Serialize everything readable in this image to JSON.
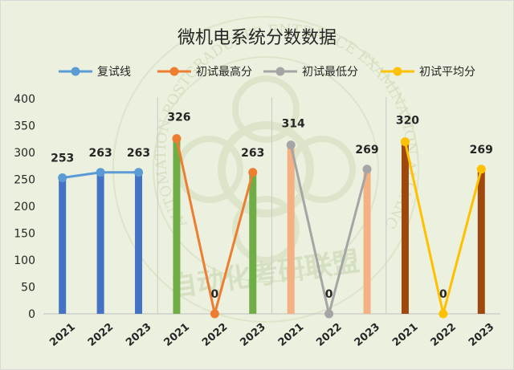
{
  "chart_data": {
    "type": "bar",
    "title": "微机电系统分数数据",
    "ylim": [
      0,
      400
    ],
    "yticks": [
      0,
      50,
      100,
      150,
      200,
      250,
      300,
      350,
      400
    ],
    "grid": false,
    "legend_position": "top",
    "groups": [
      {
        "categories": [
          "2021",
          "2022",
          "2023"
        ],
        "bar_values": [
          253,
          263,
          263
        ],
        "bar_color": "#4472c4",
        "line_series": "复试线",
        "line_values": [
          253,
          263,
          263
        ],
        "data_labels": [
          "253",
          "263",
          "263"
        ]
      },
      {
        "categories": [
          "2021",
          "2022",
          "2023"
        ],
        "bar_values": [
          326,
          0,
          263
        ],
        "bar_color": "#70ad47",
        "line_series": "初试最高分",
        "line_values": [
          326,
          0,
          263
        ],
        "data_labels": [
          "326",
          "0",
          "263"
        ]
      },
      {
        "categories": [
          "2021",
          "2022",
          "2023"
        ],
        "bar_values": [
          314,
          0,
          269
        ],
        "bar_color": "#f4b183",
        "line_series": "初试最低分",
        "line_values": [
          314,
          0,
          269
        ],
        "data_labels": [
          "314",
          "0",
          "269"
        ]
      },
      {
        "categories": [
          "2021",
          "2022",
          "2023"
        ],
        "bar_values": [
          320,
          0,
          269
        ],
        "bar_color": "#9e480e",
        "line_series": "初试平均分",
        "line_values": [
          320,
          0,
          269
        ],
        "data_labels": [
          "320",
          "0",
          "269"
        ]
      }
    ],
    "legend": [
      {
        "name": "复试线",
        "color": "#5b9bd5"
      },
      {
        "name": "初试最高分",
        "color": "#ed7d31"
      },
      {
        "name": "初试最低分",
        "color": "#a5a5a5"
      },
      {
        "name": "初试平均分",
        "color": "#ffc000"
      }
    ]
  },
  "watermark": {
    "ring_text": "AUTOMATION POSTGRADUATE ENTRANCE EXAMINATION ALLIANCE",
    "bottom_text": "自动化考研联盟"
  }
}
